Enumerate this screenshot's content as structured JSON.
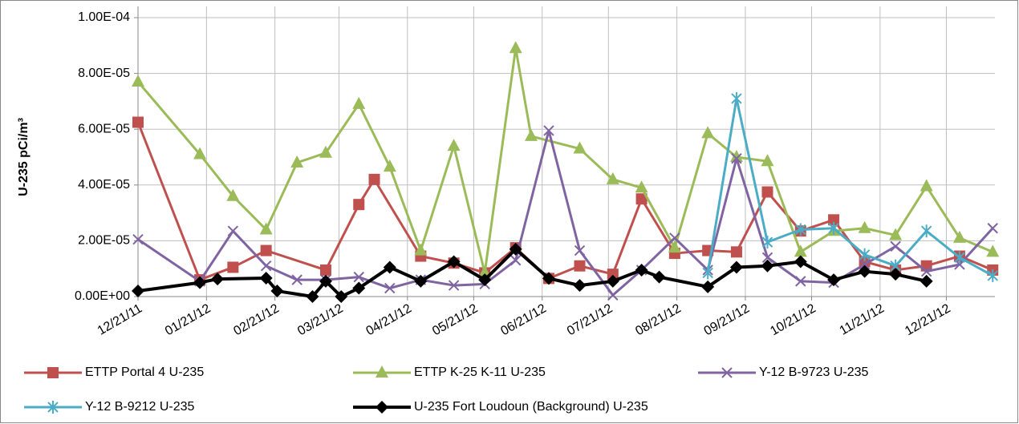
{
  "chart_data": {
    "type": "line",
    "ylabel": "U-235 pCi/m³",
    "xlim": [
      "12/21/11",
      "01/12/13"
    ],
    "xticks": [
      "12/21/11",
      "01/21/12",
      "02/21/12",
      "03/21/12",
      "04/21/12",
      "05/21/12",
      "06/21/12",
      "07/21/12",
      "08/21/12",
      "09/21/12",
      "10/21/12",
      "11/21/12",
      "12/21/12"
    ],
    "ylim": [
      0,
      0.0001
    ],
    "yticks": [
      {
        "value": 0,
        "label": "0.00E+00"
      },
      {
        "value": 2e-05,
        "label": "2.00E-05"
      },
      {
        "value": 4e-05,
        "label": "4.00E-05"
      },
      {
        "value": 6e-05,
        "label": "6.00E-05"
      },
      {
        "value": 8e-05,
        "label": "8.00E-05"
      },
      {
        "value": 0.0001,
        "label": "1.00E-04"
      }
    ],
    "grid": true,
    "legend": "bottom",
    "series": [
      {
        "name": "ETTP Portal 4 U-235",
        "color": "#c0504d",
        "marker": "square",
        "x": [
          "12/21/11",
          "01/18/12",
          "02/02/12",
          "02/17/12",
          "03/15/12",
          "03/30/12",
          "04/06/12",
          "04/27/12",
          "05/12/12",
          "05/26/12",
          "06/09/12",
          "06/24/12",
          "07/08/12",
          "07/23/12",
          "08/05/12",
          "08/20/12",
          "09/04/12",
          "09/17/12",
          "10/01/12",
          "10/16/12",
          "10/31/12",
          "11/14/12",
          "11/28/12",
          "12/12/12",
          "12/27/12",
          "01/11/13"
        ],
        "values": [
          6.25e-05,
          6e-06,
          1.05e-05,
          1.65e-05,
          9.5e-06,
          3.3e-05,
          4.2e-05,
          1.45e-05,
          1.2e-05,
          8.5e-06,
          1.75e-05,
          6.5e-06,
          1.1e-05,
          8e-06,
          3.5e-05,
          1.55e-05,
          1.65e-05,
          1.6e-05,
          3.75e-05,
          2.35e-05,
          2.75e-05,
          1.25e-05,
          9.5e-06,
          1.1e-05,
          1.45e-05,
          9.5e-06
        ]
      },
      {
        "name": "ETTP K-25 K-11 U-235",
        "color": "#9bbb59",
        "marker": "triangle",
        "x": [
          "12/21/11",
          "01/18/12",
          "02/02/12",
          "02/17/12",
          "03/02/12",
          "03/15/12",
          "03/30/12",
          "04/13/12",
          "04/27/12",
          "05/12/12",
          "05/26/12",
          "06/09/12",
          "06/16/12",
          "07/08/12",
          "07/23/12",
          "08/05/12",
          "08/20/12",
          "09/04/12",
          "09/17/12",
          "10/01/12",
          "10/16/12",
          "10/31/12",
          "11/14/12",
          "11/28/12",
          "12/12/12",
          "12/27/12",
          "01/11/13"
        ],
        "values": [
          7.7e-05,
          5.1e-05,
          3.6e-05,
          2.4e-05,
          4.8e-05,
          5.15e-05,
          6.9e-05,
          4.65e-05,
          1.65e-05,
          5.4e-05,
          8.5e-06,
          8.9e-05,
          5.75e-05,
          5.3e-05,
          4.2e-05,
          3.9e-05,
          1.75e-05,
          5.85e-05,
          5e-05,
          4.85e-05,
          1.6e-05,
          2.35e-05,
          2.45e-05,
          2.2e-05,
          3.95e-05,
          2.1e-05,
          1.6e-05
        ]
      },
      {
        "name": "Y-12 B-9723 U-235",
        "color": "#8064a2",
        "marker": "x",
        "x": [
          "12/21/11",
          "01/18/12",
          "02/02/12",
          "02/17/12",
          "03/02/12",
          "03/15/12",
          "03/30/12",
          "04/13/12",
          "04/27/12",
          "05/12/12",
          "05/26/12",
          "06/09/12",
          "06/24/12",
          "07/08/12",
          "07/23/12",
          "08/05/12",
          "08/20/12",
          "09/04/12",
          "09/17/12",
          "10/01/12",
          "10/16/12",
          "10/31/12",
          "11/14/12",
          "11/28/12",
          "12/12/12",
          "12/27/12",
          "01/11/13"
        ],
        "values": [
          2.05e-05,
          5.5e-06,
          2.35e-05,
          1.1e-05,
          6e-06,
          6e-06,
          7e-06,
          3e-06,
          6e-06,
          4e-06,
          4.5e-06,
          1.3e-05,
          5.95e-05,
          1.65e-05,
          5e-07,
          9.5e-06,
          2.1e-05,
          9.5e-06,
          4.95e-05,
          1.4e-05,
          5.5e-06,
          5e-06,
          1.15e-05,
          1.8e-05,
          9e-06,
          1.15e-05,
          2.45e-05
        ]
      },
      {
        "name": "Y-12 B-9212 U-235",
        "color": "#4bacc6",
        "marker": "star",
        "x": [
          "09/04/12",
          "09/17/12",
          "10/01/12",
          "10/16/12",
          "10/31/12",
          "11/14/12",
          "11/28/12",
          "12/12/12",
          "12/27/12",
          "01/11/13"
        ],
        "values": [
          8.5e-06,
          7.1e-05,
          1.95e-05,
          2.4e-05,
          2.45e-05,
          1.5e-05,
          1.1e-05,
          2.35e-05,
          1.4e-05,
          7.5e-06
        ]
      },
      {
        "name": "U-235 Fort Loudoun (Background) U-235",
        "color": "#000000",
        "marker": "diamond",
        "x": [
          "12/21/11",
          "01/18/12",
          "01/26/12",
          "02/17/12",
          "02/22/12",
          "03/09/12",
          "03/15/12",
          "03/22/12",
          "03/30/12",
          "04/13/12",
          "04/27/12",
          "05/12/12",
          "05/26/12",
          "06/09/12",
          "06/24/12",
          "07/08/12",
          "07/23/12",
          "08/05/12",
          "08/13/12",
          "09/04/12",
          "09/17/12",
          "10/01/12",
          "10/16/12",
          "10/31/12",
          "11/14/12",
          "11/28/12",
          "12/12/12"
        ],
        "values": [
          2e-06,
          5e-06,
          6.3e-06,
          6.6e-06,
          2e-06,
          0,
          5.5e-06,
          0,
          3e-06,
          1.05e-05,
          5.5e-06,
          1.25e-05,
          6e-06,
          1.7e-05,
          6.5e-06,
          4e-06,
          5.5e-06,
          9.5e-06,
          7e-06,
          3.5e-06,
          1.05e-05,
          1.1e-05,
          1.25e-05,
          6e-06,
          9e-06,
          8e-06,
          5.5e-06
        ]
      }
    ]
  }
}
